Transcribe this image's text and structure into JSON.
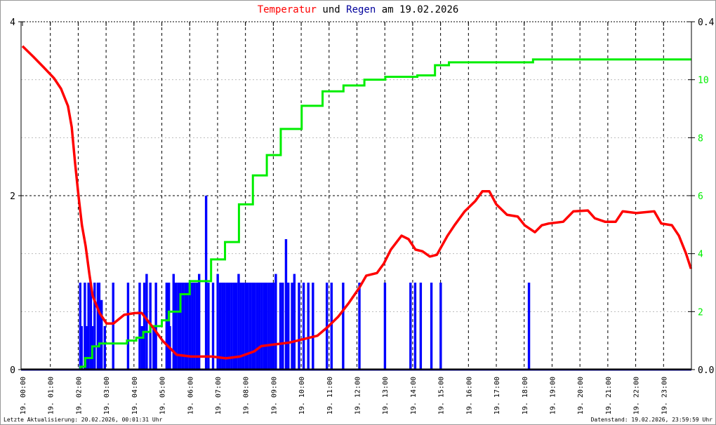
{
  "title": {
    "part1": "Temperatur",
    "part2": " und ",
    "part3": "Regen",
    "part4": " am 19.02.2026"
  },
  "colors": {
    "temperature": "#ff0000",
    "rain": "#0000ff",
    "rain_sum": "#00ee00",
    "title_text": "#000000",
    "grid_major": "#000000",
    "grid_minor": "#bbbbbb"
  },
  "footer": {
    "left": "Letzte Aktualisierung: 20.02.2026, 00:01:31 Uhr",
    "right": "Datenstand: 19.02.2026, 23:59:59 Uhr"
  },
  "chart_data": {
    "type": "line",
    "title": "Temperatur und Regen am 19.02.2026",
    "x_range": [
      "00:00",
      "24:00"
    ],
    "x_ticks": [
      "19. 00:00",
      "19. 01:00",
      "19. 02:00",
      "19. 03:00",
      "19. 04:00",
      "19. 05:00",
      "19. 06:00",
      "19. 07:00",
      "19. 08:00",
      "19. 09:00",
      "19. 10:00",
      "19. 11:00",
      "19. 12:00",
      "19. 13:00",
      "19. 14:00",
      "19. 15:00",
      "19. 16:00",
      "19. 17:00",
      "19. 18:00",
      "19. 19:00",
      "19. 20:00",
      "19. 21:00",
      "19. 22:00",
      "19. 23:00"
    ],
    "y_left": {
      "range": [
        0,
        4
      ],
      "ticks": [
        "0",
        "2",
        "4"
      ]
    },
    "y_right_rain": {
      "range": [
        0,
        0.4
      ],
      "ticks": [
        "0.0",
        "0.4"
      ]
    },
    "y_right_sum": {
      "range": [
        0,
        12
      ],
      "ticks": [
        "2",
        "4",
        "6",
        "8",
        "10"
      ]
    },
    "grid": true,
    "series": [
      {
        "key": "temperature",
        "type": "line",
        "axis": "left",
        "points": [
          [
            "00:00",
            3.72
          ],
          [
            "00:23",
            3.6
          ],
          [
            "00:45",
            3.48
          ],
          [
            "01:08",
            3.35
          ],
          [
            "01:23",
            3.23
          ],
          [
            "01:38",
            3.03
          ],
          [
            "01:46",
            2.79
          ],
          [
            "01:53",
            2.39
          ],
          [
            "02:01",
            1.98
          ],
          [
            "02:08",
            1.66
          ],
          [
            "02:16",
            1.42
          ],
          [
            "02:24",
            1.1
          ],
          [
            "02:31",
            0.85
          ],
          [
            "02:46",
            0.65
          ],
          [
            "03:01",
            0.53
          ],
          [
            "03:16",
            0.53
          ],
          [
            "03:39",
            0.63
          ],
          [
            "04:02",
            0.65
          ],
          [
            "04:17",
            0.65
          ],
          [
            "04:40",
            0.49
          ],
          [
            "05:02",
            0.33
          ],
          [
            "05:17",
            0.25
          ],
          [
            "05:32",
            0.17
          ],
          [
            "06:03",
            0.15
          ],
          [
            "06:48",
            0.15
          ],
          [
            "07:18",
            0.13
          ],
          [
            "07:48",
            0.15
          ],
          [
            "08:19",
            0.21
          ],
          [
            "08:34",
            0.27
          ],
          [
            "09:04",
            0.29
          ],
          [
            "09:34",
            0.31
          ],
          [
            "10:05",
            0.35
          ],
          [
            "10:35",
            0.39
          ],
          [
            "10:57",
            0.49
          ],
          [
            "11:20",
            0.61
          ],
          [
            "11:43",
            0.77
          ],
          [
            "12:05",
            0.94
          ],
          [
            "12:20",
            1.08
          ],
          [
            "12:43",
            1.11
          ],
          [
            "12:58",
            1.22
          ],
          [
            "13:13",
            1.38
          ],
          [
            "13:36",
            1.54
          ],
          [
            "13:51",
            1.5
          ],
          [
            "14:06",
            1.38
          ],
          [
            "14:21",
            1.36
          ],
          [
            "14:37",
            1.3
          ],
          [
            "14:52",
            1.32
          ],
          [
            "15:15",
            1.54
          ],
          [
            "15:30",
            1.66
          ],
          [
            "15:52",
            1.82
          ],
          [
            "16:15",
            1.94
          ],
          [
            "16:30",
            2.05
          ],
          [
            "16:45",
            2.05
          ],
          [
            "17:00",
            1.9
          ],
          [
            "17:23",
            1.78
          ],
          [
            "17:46",
            1.76
          ],
          [
            "18:01",
            1.66
          ],
          [
            "18:23",
            1.58
          ],
          [
            "18:38",
            1.66
          ],
          [
            "18:53",
            1.68
          ],
          [
            "19:24",
            1.7
          ],
          [
            "19:46",
            1.82
          ],
          [
            "20:17",
            1.83
          ],
          [
            "20:32",
            1.74
          ],
          [
            "20:54",
            1.7
          ],
          [
            "21:17",
            1.7
          ],
          [
            "21:32",
            1.82
          ],
          [
            "22:02",
            1.8
          ],
          [
            "22:40",
            1.82
          ],
          [
            "22:55",
            1.68
          ],
          [
            "23:18",
            1.66
          ],
          [
            "23:33",
            1.54
          ],
          [
            "23:48",
            1.34
          ],
          [
            "23:59",
            1.16
          ]
        ]
      },
      {
        "key": "rain_sum",
        "type": "step",
        "axis": "right_sum",
        "points": [
          [
            "01:55",
            0.0
          ],
          [
            "02:05",
            0.1
          ],
          [
            "02:15",
            0.4
          ],
          [
            "02:30",
            0.8
          ],
          [
            "02:45",
            0.9
          ],
          [
            "03:45",
            1.0
          ],
          [
            "04:05",
            1.1
          ],
          [
            "04:20",
            1.3
          ],
          [
            "04:35",
            1.5
          ],
          [
            "05:00",
            1.7
          ],
          [
            "05:15",
            2.0
          ],
          [
            "05:40",
            2.6
          ],
          [
            "06:00",
            3.05
          ],
          [
            "06:46",
            3.8
          ],
          [
            "07:16",
            4.4
          ],
          [
            "07:46",
            5.7
          ],
          [
            "08:16",
            6.7
          ],
          [
            "08:46",
            7.4
          ],
          [
            "09:16",
            8.3
          ],
          [
            "10:01",
            9.1
          ],
          [
            "10:46",
            9.6
          ],
          [
            "11:31",
            9.8
          ],
          [
            "12:16",
            10.0
          ],
          [
            "13:01",
            10.1
          ],
          [
            "14:10",
            10.15
          ],
          [
            "14:48",
            10.5
          ],
          [
            "15:18",
            10.6
          ],
          [
            "18:11",
            10.6
          ],
          [
            "18:19",
            10.7
          ],
          [
            "24:00",
            10.7
          ]
        ]
      },
      {
        "key": "rain",
        "type": "bar",
        "axis": "right_rain",
        "points": [
          [
            "02:04",
            0.1
          ],
          [
            "02:07",
            0.05
          ],
          [
            "02:14",
            0.1
          ],
          [
            "02:17",
            0.05
          ],
          [
            "02:22",
            0.1
          ],
          [
            "02:27",
            0.1
          ],
          [
            "02:30",
            0.05
          ],
          [
            "02:35",
            0.1
          ],
          [
            "02:42",
            0.1
          ],
          [
            "02:45",
            0.1
          ],
          [
            "02:50",
            0.08
          ],
          [
            "02:57",
            0.05
          ],
          [
            "03:15",
            0.1
          ],
          [
            "03:47",
            0.1
          ],
          [
            "04:12",
            0.1
          ],
          [
            "04:17",
            0.05
          ],
          [
            "04:22",
            0.1
          ],
          [
            "04:27",
            0.11
          ],
          [
            "04:35",
            0.1
          ],
          [
            "04:42",
            0.05
          ],
          [
            "04:47",
            0.1
          ],
          [
            "05:10",
            0.1
          ],
          [
            "05:15",
            0.1
          ],
          [
            "05:17",
            0.05
          ],
          [
            "05:25",
            0.11
          ],
          [
            "05:30",
            0.1
          ],
          [
            "05:35",
            0.1
          ],
          [
            "05:40",
            0.1
          ],
          [
            "05:45",
            0.1
          ],
          [
            "05:50",
            0.1
          ],
          [
            "05:55",
            0.1
          ],
          [
            "06:00",
            0.1
          ],
          [
            "06:05",
            0.1
          ],
          [
            "06:10",
            0.1
          ],
          [
            "06:15",
            0.1
          ],
          [
            "06:20",
            0.11
          ],
          [
            "06:35",
            0.2
          ],
          [
            "06:40",
            0.1
          ],
          [
            "06:50",
            0.1
          ],
          [
            "07:00",
            0.11
          ],
          [
            "07:05",
            0.1
          ],
          [
            "07:10",
            0.1
          ],
          [
            "07:15",
            0.1
          ],
          [
            "07:20",
            0.1
          ],
          [
            "07:25",
            0.1
          ],
          [
            "07:30",
            0.1
          ],
          [
            "07:35",
            0.1
          ],
          [
            "07:40",
            0.1
          ],
          [
            "07:45",
            0.11
          ],
          [
            "07:50",
            0.1
          ],
          [
            "07:55",
            0.1
          ],
          [
            "08:00",
            0.1
          ],
          [
            "08:05",
            0.1
          ],
          [
            "08:10",
            0.1
          ],
          [
            "08:15",
            0.1
          ],
          [
            "08:20",
            0.1
          ],
          [
            "08:25",
            0.1
          ],
          [
            "08:30",
            0.1
          ],
          [
            "08:35",
            0.1
          ],
          [
            "08:40",
            0.1
          ],
          [
            "08:45",
            0.1
          ],
          [
            "08:50",
            0.1
          ],
          [
            "08:55",
            0.1
          ],
          [
            "09:00",
            0.1
          ],
          [
            "09:05",
            0.11
          ],
          [
            "09:15",
            0.1
          ],
          [
            "09:20",
            0.1
          ],
          [
            "09:27",
            0.15
          ],
          [
            "09:32",
            0.1
          ],
          [
            "09:40",
            0.1
          ],
          [
            "09:45",
            0.11
          ],
          [
            "09:55",
            0.1
          ],
          [
            "10:05",
            0.1
          ],
          [
            "10:15",
            0.1
          ],
          [
            "10:25",
            0.1
          ],
          [
            "10:55",
            0.1
          ],
          [
            "11:05",
            0.1
          ],
          [
            "11:30",
            0.1
          ],
          [
            "12:05",
            0.1
          ],
          [
            "13:00",
            0.1
          ],
          [
            "13:55",
            0.1
          ],
          [
            "14:05",
            0.1
          ],
          [
            "14:17",
            0.1
          ],
          [
            "14:40",
            0.1
          ],
          [
            "15:00",
            0.1
          ],
          [
            "18:10",
            0.1
          ]
        ]
      }
    ]
  }
}
